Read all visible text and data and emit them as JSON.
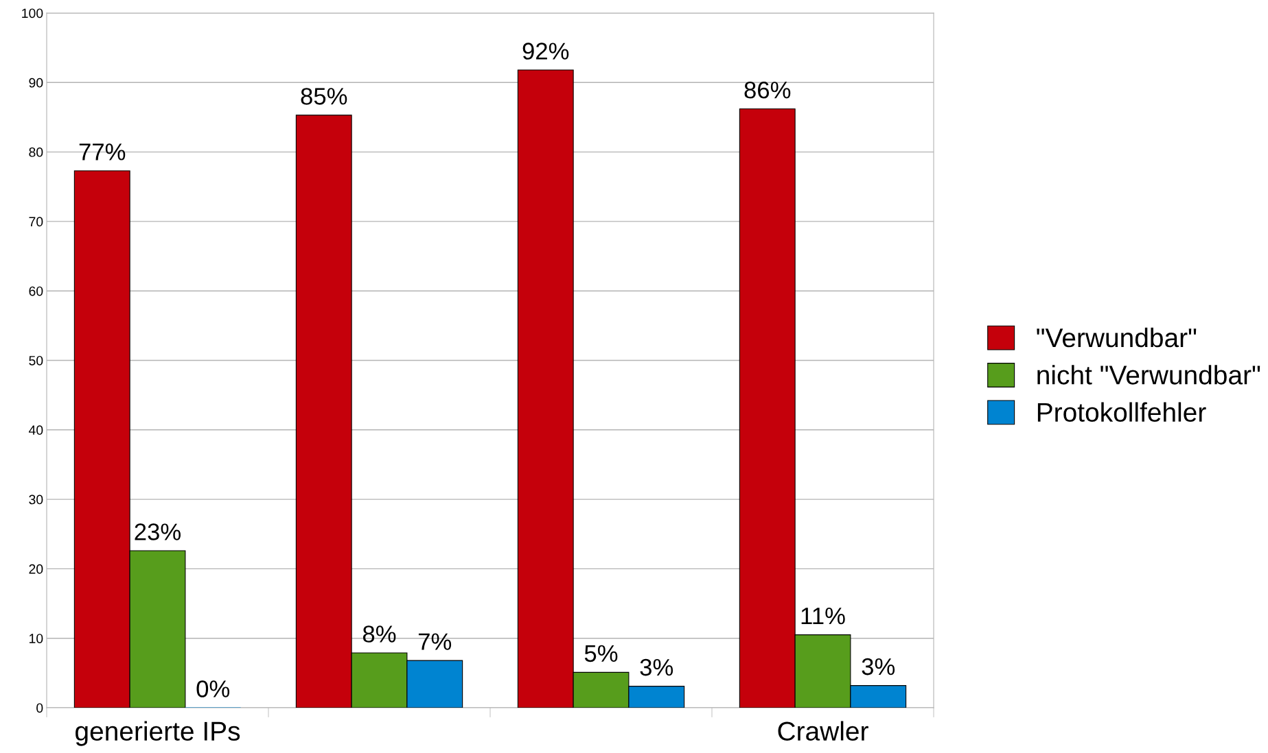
{
  "chart_data": {
    "type": "bar",
    "categories": [
      "generierte IPs",
      null,
      null,
      "Crawler"
    ],
    "series": [
      {
        "name": "\"Verwundbar\"",
        "color": "#c5000b",
        "values": [
          77.3,
          85.3,
          91.8,
          86.2
        ],
        "value_labels": [
          "77%",
          "85%",
          "92%",
          "86%"
        ]
      },
      {
        "name": "nicht \"Verwundbar\"",
        "color": "#579d1c",
        "values": [
          22.6,
          7.9,
          5.1,
          10.5
        ],
        "value_labels": [
          "23%",
          "8%",
          "5%",
          "11%"
        ]
      },
      {
        "name": "Protokollfehler",
        "color": "#0084d1",
        "values": [
          0,
          6.8,
          3.1,
          3.2
        ],
        "value_labels": [
          "0%",
          "7%",
          "3%",
          "3%"
        ]
      }
    ],
    "ylim": [
      0,
      100
    ],
    "yticks": [
      0,
      10,
      20,
      30,
      40,
      50,
      60,
      70,
      80,
      90,
      100
    ],
    "grid": "y",
    "legend": "right"
  }
}
